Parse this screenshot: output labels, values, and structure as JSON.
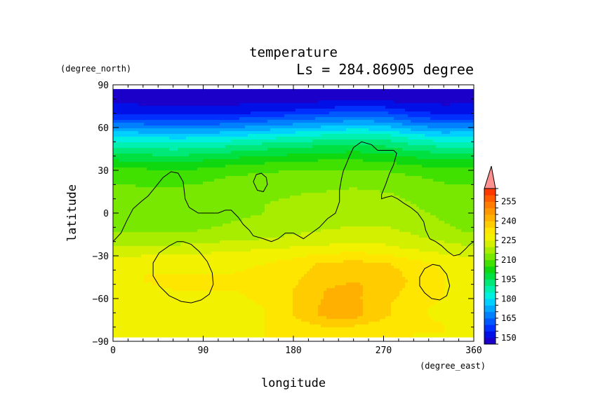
{
  "chart_data": {
    "type": "heatmap",
    "title": "temperature",
    "subtitle": "Ls = 284.86905 degree",
    "xlabel": "longitude",
    "ylabel": "latitude",
    "x_units": "(degree_east)",
    "y_units": "(degree_north)",
    "xlim": [
      0,
      360
    ],
    "ylim": [
      -90,
      90
    ],
    "x_ticks": [
      {
        "value": 0,
        "label": "0"
      },
      {
        "value": 90,
        "label": "90"
      },
      {
        "value": 180,
        "label": "180"
      },
      {
        "value": 270,
        "label": "270"
      },
      {
        "value": 360,
        "label": "360"
      }
    ],
    "y_ticks": [
      {
        "value": 90,
        "label": "90"
      },
      {
        "value": 60,
        "label": "60"
      },
      {
        "value": 30,
        "label": "30"
      },
      {
        "value": 0,
        "label": "0"
      },
      {
        "value": -30,
        "label": "−30"
      },
      {
        "value": -60,
        "label": "−60"
      },
      {
        "value": -90,
        "label": "−90"
      }
    ],
    "data_lat_range": [
      -87,
      87
    ],
    "colorbar": {
      "min": 145,
      "max": 260,
      "step": 5,
      "tick_labels": [
        "150",
        "165",
        "180",
        "195",
        "210",
        "225",
        "240",
        "255"
      ],
      "colors": [
        "#1a00c8",
        "#0010e6",
        "#0030ff",
        "#0058ff",
        "#0080ff",
        "#00a8ff",
        "#00d0ff",
        "#00f0e0",
        "#00f0b0",
        "#00e878",
        "#00e040",
        "#10d810",
        "#40e000",
        "#78e800",
        "#a8ec00",
        "#d2f000",
        "#f2f200",
        "#ffe600",
        "#ffcc00",
        "#ffb000",
        "#ff9800",
        "#ff7c00",
        "#ff5c00",
        "#ff3800",
        "#ff9090"
      ]
    },
    "samples_lat": [
      87,
      80,
      72,
      66,
      60,
      54,
      48,
      42,
      36,
      30,
      24,
      18,
      12,
      6,
      0,
      -6,
      -12,
      -18,
      -24,
      -30,
      -36,
      -42,
      -48,
      -54,
      -60,
      -66,
      -72,
      -78,
      -84,
      -87
    ],
    "samples_lon": [
      0,
      30,
      60,
      90,
      120,
      150,
      180,
      210,
      240,
      270,
      300,
      330,
      360
    ],
    "values": [
      [
        146,
        146,
        146,
        146,
        146,
        146,
        146,
        146,
        146,
        146,
        146,
        146,
        146
      ],
      [
        148,
        148,
        148,
        148,
        148,
        148,
        148,
        148,
        148,
        148,
        148,
        148,
        148
      ],
      [
        153,
        152,
        151,
        151,
        152,
        153,
        155,
        157,
        159,
        158,
        154,
        152,
        153
      ],
      [
        160,
        159,
        158,
        158,
        160,
        162,
        164,
        166,
        168,
        167,
        162,
        159,
        160
      ],
      [
        170,
        169,
        168,
        168,
        170,
        172,
        174,
        176,
        178,
        177,
        172,
        169,
        170
      ],
      [
        180,
        179,
        178,
        178,
        180,
        182,
        184,
        186,
        188,
        187,
        182,
        179,
        180
      ],
      [
        188,
        187,
        186,
        187,
        189,
        191,
        193,
        194,
        195,
        194,
        190,
        188,
        188
      ],
      [
        195,
        194,
        193,
        194,
        196,
        198,
        199,
        200,
        201,
        200,
        197,
        195,
        195
      ],
      [
        201,
        200,
        200,
        201,
        203,
        204,
        205,
        206,
        206,
        205,
        203,
        201,
        201
      ],
      [
        206,
        206,
        205,
        206,
        208,
        209,
        210,
        210,
        210,
        210,
        208,
        206,
        206
      ],
      [
        209,
        209,
        208,
        209,
        211,
        212,
        213,
        213,
        213,
        213,
        211,
        209,
        209
      ],
      [
        211,
        210,
        210,
        211,
        212,
        213,
        214,
        214,
        215,
        214,
        213,
        211,
        211
      ],
      [
        212,
        212,
        211,
        212,
        213,
        214,
        215,
        216,
        216,
        216,
        214,
        212,
        212
      ],
      [
        213,
        213,
        213,
        213,
        214,
        215,
        216,
        217,
        217,
        217,
        215,
        213,
        213
      ],
      [
        213,
        213,
        213,
        213,
        214,
        215,
        216,
        217,
        218,
        218,
        216,
        214,
        213
      ],
      [
        213,
        213,
        213,
        214,
        215,
        216,
        217,
        218,
        219,
        219,
        217,
        215,
        213
      ],
      [
        214,
        214,
        214,
        215,
        216,
        217,
        219,
        220,
        221,
        221,
        219,
        216,
        214
      ],
      [
        217,
        217,
        217,
        218,
        219,
        220,
        221,
        222,
        223,
        223,
        221,
        219,
        217
      ],
      [
        220,
        221,
        221,
        222,
        223,
        224,
        225,
        226,
        227,
        226,
        224,
        222,
        220
      ],
      [
        224,
        225,
        225,
        226,
        227,
        228,
        229,
        231,
        232,
        231,
        228,
        226,
        224
      ],
      [
        227,
        228,
        228,
        228,
        229,
        230,
        232,
        236,
        237,
        236,
        232,
        229,
        227
      ],
      [
        229,
        230,
        230,
        230,
        230,
        231,
        233,
        238,
        239,
        238,
        233,
        230,
        229
      ],
      [
        229,
        230,
        231,
        230,
        230,
        231,
        234,
        239,
        240,
        239,
        234,
        230,
        229
      ],
      [
        229,
        229,
        230,
        230,
        230,
        231,
        235,
        240,
        241,
        238,
        233,
        230,
        229
      ],
      [
        228,
        227,
        226,
        227,
        229,
        231,
        235,
        240,
        241,
        237,
        232,
        230,
        229
      ],
      [
        227,
        226,
        225,
        226,
        228,
        230,
        235,
        241,
        242,
        236,
        231,
        229,
        228
      ],
      [
        228,
        227,
        226,
        227,
        228,
        230,
        235,
        241,
        242,
        236,
        231,
        229,
        228
      ],
      [
        229,
        228,
        228,
        228,
        229,
        230,
        233,
        236,
        236,
        233,
        231,
        230,
        229
      ],
      [
        229,
        229,
        229,
        229,
        229,
        230,
        231,
        232,
        232,
        231,
        230,
        230,
        229
      ],
      [
        229,
        229,
        229,
        229,
        229,
        230,
        230,
        231,
        231,
        230,
        230,
        229,
        229
      ]
    ],
    "contours": [
      [
        [
          0,
          -20
        ],
        [
          8,
          -14
        ],
        [
          14,
          -5
        ],
        [
          20,
          3
        ],
        [
          28,
          8
        ],
        [
          35,
          12
        ],
        [
          42,
          18
        ],
        [
          50,
          25
        ],
        [
          58,
          29
        ],
        [
          65,
          28
        ],
        [
          70,
          22
        ],
        [
          72,
          10
        ],
        [
          76,
          4
        ],
        [
          85,
          0
        ],
        [
          95,
          0
        ],
        [
          105,
          0
        ],
        [
          112,
          2
        ],
        [
          118,
          2
        ],
        [
          125,
          -3
        ],
        [
          130,
          -8
        ],
        [
          136,
          -12
        ],
        [
          140,
          -16
        ],
        [
          150,
          -18
        ],
        [
          158,
          -20
        ],
        [
          165,
          -18
        ],
        [
          172,
          -14
        ],
        [
          180,
          -14
        ],
        [
          190,
          -18
        ],
        [
          198,
          -14
        ],
        [
          206,
          -10
        ],
        [
          214,
          -4
        ],
        [
          222,
          0
        ],
        [
          226,
          8
        ],
        [
          226,
          16
        ],
        [
          228,
          24
        ],
        [
          230,
          30
        ],
        [
          232,
          33
        ],
        [
          236,
          40
        ],
        [
          240,
          46
        ],
        [
          248,
          50
        ],
        [
          258,
          48
        ],
        [
          264,
          44
        ],
        [
          272,
          44
        ],
        [
          280,
          44
        ],
        [
          283,
          42
        ],
        [
          280,
          34
        ],
        [
          276,
          28
        ],
        [
          272,
          20
        ],
        [
          268,
          13
        ],
        [
          268,
          10
        ],
        [
          272,
          11
        ],
        [
          278,
          12
        ],
        [
          284,
          10
        ],
        [
          290,
          7
        ],
        [
          297,
          4
        ],
        [
          304,
          0
        ],
        [
          310,
          -6
        ],
        [
          312,
          -12
        ],
        [
          316,
          -18
        ],
        [
          322,
          -20
        ],
        [
          328,
          -23
        ],
        [
          334,
          -27
        ],
        [
          340,
          -30
        ],
        [
          346,
          -29
        ],
        [
          352,
          -25
        ],
        [
          356,
          -22
        ],
        [
          360,
          -20
        ]
      ],
      [
        [
          140,
          22
        ],
        [
          143,
          27
        ],
        [
          148,
          28
        ],
        [
          153,
          25
        ],
        [
          154,
          20
        ],
        [
          150,
          15
        ],
        [
          144,
          16
        ],
        [
          140,
          22
        ]
      ],
      [
        [
          70,
          -20
        ],
        [
          78,
          -22
        ],
        [
          86,
          -27
        ],
        [
          94,
          -34
        ],
        [
          99,
          -42
        ],
        [
          100,
          -50
        ],
        [
          96,
          -57
        ],
        [
          88,
          -61
        ],
        [
          78,
          -63
        ],
        [
          68,
          -62
        ],
        [
          56,
          -58
        ],
        [
          46,
          -51
        ],
        [
          40,
          -44
        ],
        [
          40,
          -35
        ],
        [
          46,
          -28
        ],
        [
          56,
          -23
        ],
        [
          64,
          -20
        ],
        [
          70,
          -20
        ]
      ],
      [
        [
          319,
          -36
        ],
        [
          326,
          -37
        ],
        [
          333,
          -43
        ],
        [
          336,
          -51
        ],
        [
          333,
          -58
        ],
        [
          326,
          -61
        ],
        [
          318,
          -60
        ],
        [
          311,
          -56
        ],
        [
          306,
          -51
        ],
        [
          306,
          -45
        ],
        [
          311,
          -39
        ],
        [
          319,
          -36
        ]
      ]
    ]
  }
}
